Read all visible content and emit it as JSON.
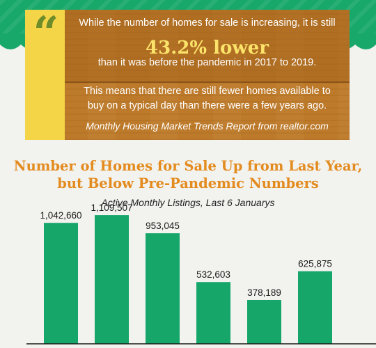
{
  "quote": {
    "line1": "While the number of homes for sale is increasing, it is still",
    "highlight": "43.2% lower",
    "line3": "than it was before the pandemic in 2017 to 2019.",
    "paragraph": "This means that there are still fewer homes available to buy on a typical day than there were a few years ago.",
    "source": "Monthly Housing Market Trends Report from realtor.com",
    "icon": "quote-mark-icon"
  },
  "chart_data": {
    "type": "bar",
    "title": "Number of Homes for Sale Up from Last Year, but Below Pre-Pandemic Numbers",
    "subtitle": "Active Monthly Listings, Last 6 Januarys",
    "values": [
      1042660,
      1109507,
      953045,
      532603,
      378189,
      625875
    ],
    "data_labels": [
      "1,042,660",
      "1,109,507",
      "953,045",
      "532,603",
      "378,189",
      "625,875"
    ],
    "ylim": [
      0,
      1200000
    ],
    "grid": false,
    "bar_color": "#16a66a"
  },
  "colors": {
    "banner_green": "#17a86a",
    "wood": "#bd7a2a",
    "quote_bar": "#f4d547",
    "title_orange": "#e38b1e",
    "highlight_yellow": "#fbe36a"
  }
}
